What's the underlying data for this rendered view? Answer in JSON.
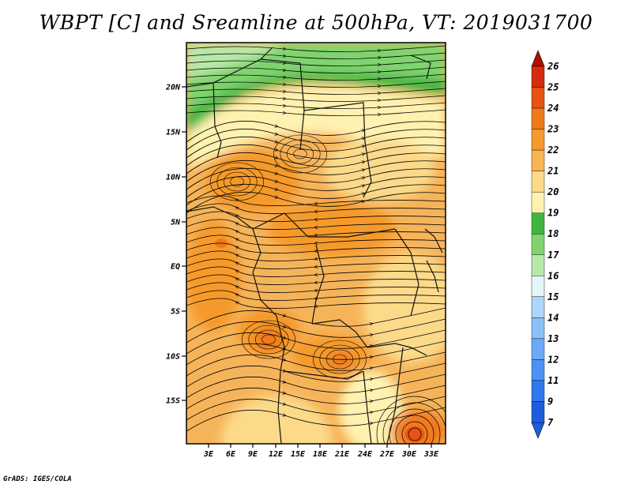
{
  "title": "WBPT [C] and Sreamline at 500hPa, VT: 2019031700",
  "credit": "GrADS: IGES/COLA",
  "latitude_labels": [
    "20N",
    "15N",
    "10N",
    "5N",
    "EQ",
    "5S",
    "10S",
    "15S"
  ],
  "longitude_labels": [
    "3E",
    "6E",
    "9E",
    "12E",
    "15E",
    "18E",
    "21E",
    "24E",
    "27E",
    "30E",
    "33E"
  ],
  "colorbar": {
    "labels": [
      "7",
      "9",
      "11",
      "12",
      "13",
      "14",
      "15",
      "16",
      "17",
      "18",
      "19",
      "20",
      "21",
      "22",
      "23",
      "24",
      "25",
      "26"
    ],
    "colors": [
      "#1e5ce0",
      "#2f78f0",
      "#4a93f5",
      "#6aaaf6",
      "#8cc1f8",
      "#b0d5fa",
      "#e4f4f8",
      "#b8e8a8",
      "#7fd46e",
      "#3fb63f",
      "#fff2b0",
      "#fcda8a",
      "#f9b552",
      "#f59a2c",
      "#f07a1a",
      "#e85212",
      "#d82a0c",
      "#b00e00"
    ]
  },
  "map_fields": {
    "variable": "WBPT",
    "unit": "C",
    "level": "500hPa",
    "valid_time": "2019031700"
  }
}
